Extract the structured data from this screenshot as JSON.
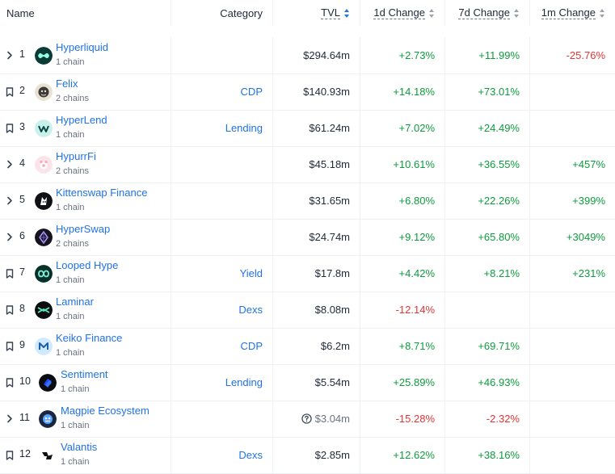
{
  "header": {
    "name": "Name",
    "category": "Category",
    "tvl": "TVL",
    "d1": "1d Change",
    "d7": "7d Change",
    "m1": "1m Change"
  },
  "colors": {
    "link": "#2172e5",
    "positive": "#0d9c3d",
    "negative": "#e03535"
  },
  "rows": [
    {
      "rank": "1",
      "name": "Hyperliquid",
      "chains": "1 chain",
      "category": "",
      "tvl": "$294.64m",
      "d1": "+2.73%",
      "d7": "+11.99%",
      "m1": "-25.76%",
      "icon": "chevron-right-icon",
      "logo": "hyperliquid-logo"
    },
    {
      "rank": "2",
      "name": "Felix",
      "chains": "2 chains",
      "category": "CDP",
      "tvl": "$140.93m",
      "d1": "+14.18%",
      "d7": "+73.01%",
      "m1": "",
      "icon": "bookmark-icon",
      "logo": "felix-logo"
    },
    {
      "rank": "3",
      "name": "HyperLend",
      "chains": "1 chain",
      "category": "Lending",
      "tvl": "$61.24m",
      "d1": "+7.02%",
      "d7": "+24.49%",
      "m1": "",
      "icon": "bookmark-icon",
      "logo": "hyperlend-logo"
    },
    {
      "rank": "4",
      "name": "HypurrFi",
      "chains": "2 chains",
      "category": "",
      "tvl": "$45.18m",
      "d1": "+10.61%",
      "d7": "+36.55%",
      "m1": "+457%",
      "icon": "chevron-right-icon",
      "logo": "hypurrfi-logo"
    },
    {
      "rank": "5",
      "name": "Kittenswap Finance",
      "chains": "1 chain",
      "category": "",
      "tvl": "$31.65m",
      "d1": "+6.80%",
      "d7": "+22.26%",
      "m1": "+399%",
      "icon": "chevron-right-icon",
      "logo": "kittenswap-logo"
    },
    {
      "rank": "6",
      "name": "HyperSwap",
      "chains": "2 chains",
      "category": "",
      "tvl": "$24.74m",
      "d1": "+9.12%",
      "d7": "+65.80%",
      "m1": "+3049%",
      "icon": "chevron-right-icon",
      "logo": "hyperswap-logo"
    },
    {
      "rank": "7",
      "name": "Looped Hype",
      "chains": "1 chain",
      "category": "Yield",
      "tvl": "$17.8m",
      "d1": "+4.42%",
      "d7": "+8.21%",
      "m1": "+231%",
      "icon": "bookmark-icon",
      "logo": "looped-hype-logo"
    },
    {
      "rank": "8",
      "name": "Laminar",
      "chains": "1 chain",
      "category": "Dexs",
      "tvl": "$8.08m",
      "d1": "-12.14%",
      "d7": "",
      "m1": "",
      "icon": "bookmark-icon",
      "logo": "laminar-logo"
    },
    {
      "rank": "9",
      "name": "Keiko Finance",
      "chains": "1 chain",
      "category": "CDP",
      "tvl": "$6.2m",
      "d1": "+8.71%",
      "d7": "+69.71%",
      "m1": "",
      "icon": "bookmark-icon",
      "logo": "keiko-logo"
    },
    {
      "rank": "10",
      "name": "Sentiment",
      "chains": "1 chain",
      "category": "Lending",
      "tvl": "$5.54m",
      "d1": "+25.89%",
      "d7": "+46.93%",
      "m1": "",
      "icon": "bookmark-icon",
      "logo": "sentiment-logo"
    },
    {
      "rank": "11",
      "name": "Magpie Ecosystem",
      "chains": "1 chain",
      "category": "",
      "tvl": "$3.04m",
      "d1": "-15.28%",
      "d7": "-2.32%",
      "m1": "",
      "icon": "chevron-right-icon",
      "logo": "magpie-logo",
      "tvl_help": true
    },
    {
      "rank": "12",
      "name": "Valantis",
      "chains": "1 chain",
      "category": "Dexs",
      "tvl": "$2.85m",
      "d1": "+12.62%",
      "d7": "+38.16%",
      "m1": "",
      "icon": "bookmark-icon",
      "logo": "valantis-logo"
    }
  ]
}
